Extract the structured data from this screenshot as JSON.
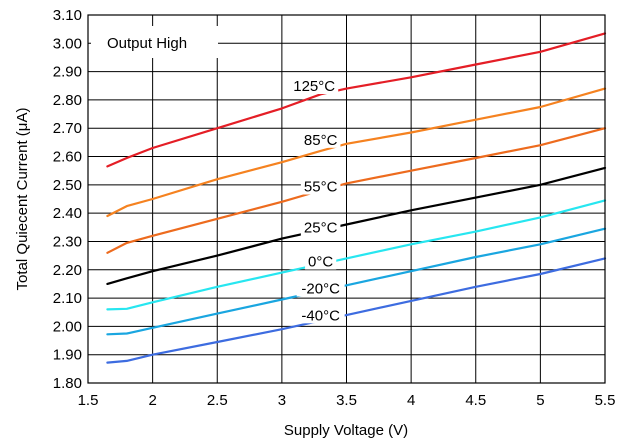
{
  "chart_data": {
    "type": "line",
    "title": "",
    "xlabel": "Supply Voltage (V)",
    "ylabel": "Total Quiecent Current (μA)",
    "xlim": [
      1.5,
      5.5
    ],
    "ylim": [
      1.8,
      3.1
    ],
    "xticks": [
      1.5,
      2,
      2.5,
      3,
      3.5,
      4,
      4.5,
      5,
      5.5
    ],
    "xtick_labels": [
      "1.5",
      "2",
      "2.5",
      "3",
      "3.5",
      "4",
      "4.5",
      "5",
      "5.5"
    ],
    "yticks": [
      1.8,
      1.9,
      2.0,
      2.1,
      2.2,
      2.3,
      2.4,
      2.5,
      2.6,
      2.7,
      2.8,
      2.9,
      3.0,
      3.1
    ],
    "ytick_labels": [
      "1.80",
      "1.90",
      "2.00",
      "2.10",
      "2.20",
      "2.30",
      "2.40",
      "2.50",
      "2.60",
      "2.70",
      "2.80",
      "2.90",
      "3.00",
      "3.10"
    ],
    "grid": true,
    "annotation": "Output High",
    "series": [
      {
        "name": "125°C",
        "color": "#e41e26",
        "label_at": [
          3.25,
          2.835
        ],
        "points": [
          [
            1.65,
            2.565
          ],
          [
            1.8,
            2.595
          ],
          [
            2.0,
            2.63
          ],
          [
            2.5,
            2.7
          ],
          [
            3.0,
            2.77
          ],
          [
            3.3,
            2.82
          ],
          [
            3.5,
            2.84
          ],
          [
            4.0,
            2.88
          ],
          [
            4.5,
            2.925
          ],
          [
            5.0,
            2.97
          ],
          [
            5.5,
            3.035
          ]
        ]
      },
      {
        "name": "85°C",
        "color": "#f58220",
        "label_at": [
          3.3,
          2.645
        ],
        "points": [
          [
            1.65,
            2.39
          ],
          [
            1.8,
            2.425
          ],
          [
            2.0,
            2.45
          ],
          [
            2.5,
            2.52
          ],
          [
            3.0,
            2.58
          ],
          [
            3.3,
            2.62
          ],
          [
            3.5,
            2.645
          ],
          [
            4.0,
            2.685
          ],
          [
            4.5,
            2.73
          ],
          [
            5.0,
            2.775
          ],
          [
            5.5,
            2.84
          ]
        ]
      },
      {
        "name": "55°C",
        "color": "#ed6b1e",
        "label_at": [
          3.3,
          2.48
        ],
        "points": [
          [
            1.65,
            2.26
          ],
          [
            1.8,
            2.295
          ],
          [
            2.0,
            2.32
          ],
          [
            2.5,
            2.38
          ],
          [
            3.0,
            2.44
          ],
          [
            3.3,
            2.48
          ],
          [
            3.5,
            2.505
          ],
          [
            4.0,
            2.55
          ],
          [
            4.5,
            2.595
          ],
          [
            5.0,
            2.64
          ],
          [
            5.5,
            2.7
          ]
        ]
      },
      {
        "name": "25°C",
        "color": "#000000",
        "label_at": [
          3.3,
          2.335
        ],
        "points": [
          [
            1.65,
            2.15
          ],
          [
            1.8,
            2.17
          ],
          [
            2.0,
            2.195
          ],
          [
            2.5,
            2.25
          ],
          [
            3.0,
            2.31
          ],
          [
            3.5,
            2.36
          ],
          [
            4.0,
            2.41
          ],
          [
            4.5,
            2.455
          ],
          [
            5.0,
            2.5
          ],
          [
            5.5,
            2.56
          ]
        ]
      },
      {
        "name": "0°C",
        "color": "#27e6f0",
        "label_at": [
          3.3,
          2.215
        ],
        "points": [
          [
            1.65,
            2.06
          ],
          [
            1.8,
            2.062
          ],
          [
            2.0,
            2.085
          ],
          [
            2.5,
            2.14
          ],
          [
            3.0,
            2.19
          ],
          [
            3.5,
            2.24
          ],
          [
            4.0,
            2.29
          ],
          [
            4.5,
            2.335
          ],
          [
            5.0,
            2.385
          ],
          [
            5.5,
            2.445
          ]
        ]
      },
      {
        "name": "-20°C",
        "color": "#1aa6e0",
        "label_at": [
          3.3,
          2.12
        ],
        "points": [
          [
            1.65,
            1.972
          ],
          [
            1.8,
            1.975
          ],
          [
            2.0,
            1.995
          ],
          [
            2.5,
            2.045
          ],
          [
            3.0,
            2.095
          ],
          [
            3.5,
            2.145
          ],
          [
            4.0,
            2.195
          ],
          [
            4.5,
            2.245
          ],
          [
            5.0,
            2.29
          ],
          [
            5.5,
            2.345
          ]
        ]
      },
      {
        "name": "-40°C",
        "color": "#3d6ce0",
        "label_at": [
          3.3,
          2.025
        ],
        "points": [
          [
            1.65,
            1.872
          ],
          [
            1.8,
            1.878
          ],
          [
            2.0,
            1.9
          ],
          [
            2.5,
            1.945
          ],
          [
            3.0,
            1.99
          ],
          [
            3.5,
            2.04
          ],
          [
            4.0,
            2.09
          ],
          [
            4.5,
            2.14
          ],
          [
            5.0,
            2.185
          ],
          [
            5.5,
            2.24
          ]
        ]
      }
    ]
  }
}
